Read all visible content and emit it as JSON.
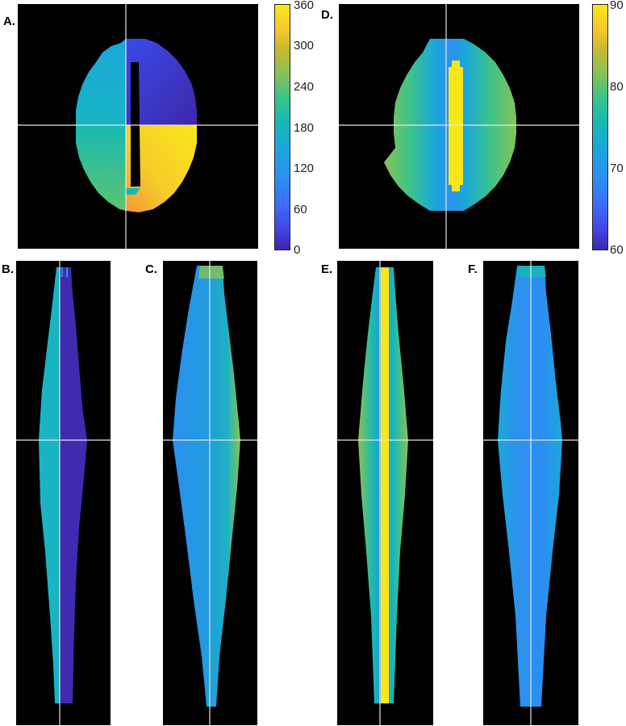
{
  "panels": [
    {
      "label": "A."
    },
    {
      "label": "B."
    },
    {
      "label": "C."
    },
    {
      "label": "D."
    },
    {
      "label": "E."
    },
    {
      "label": "F."
    }
  ],
  "colorbar_left": {
    "ticks": [
      "360",
      "300",
      "240",
      "180",
      "120",
      "60",
      "0"
    ]
  },
  "colorbar_right": {
    "ticks": [
      "90",
      "80",
      "70",
      "60"
    ]
  },
  "colors": {
    "background": "#000000",
    "crosshair": "#e6e6e6",
    "parula": [
      "#3e26a8",
      "#4343e6",
      "#3c6cfb",
      "#2b91ee",
      "#1aa8d9",
      "#16b9b3",
      "#3bc38a",
      "#87c255",
      "#c9b930",
      "#f5c72b",
      "#f9e71a"
    ]
  }
}
